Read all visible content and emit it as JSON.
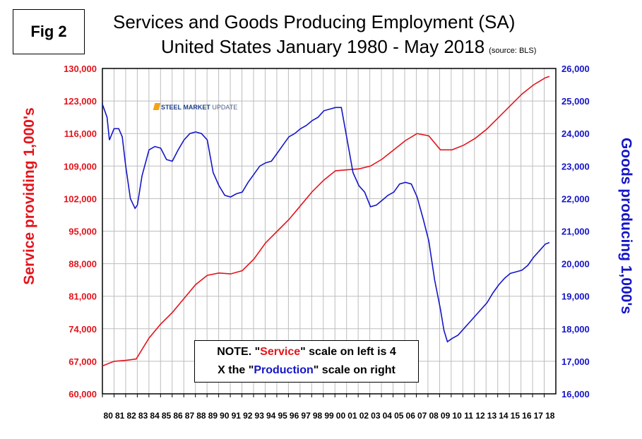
{
  "fig_label": "Fig 2",
  "title_line1": "Services and Goods Producing Employment (SA)",
  "title_line2": "United States January 1980 - May 2018",
  "source_note": "(source: BLS)",
  "logo_text_bold": "STEEL MARKET",
  "logo_text_thin": "UPDATE",
  "note": {
    "line1_pre": "NOTE. \"",
    "service_word": "Service",
    "line1_post": "\" scale on left  is 4",
    "line2_pre": "X the \"",
    "production_word": "Production",
    "line2_post": "\" scale on right"
  },
  "colors": {
    "service": "#e3141b",
    "goods": "#1515c8",
    "grid": "#bdbdbd"
  },
  "chart_data": {
    "type": "line",
    "ylabel_left": "Service providing 1,000's",
    "ylabel_right": "Goods producing 1,000's",
    "ylim_left": [
      60000,
      130000
    ],
    "ylim_right": [
      16000,
      26000
    ],
    "yticks_left": [
      "60,000",
      "67,000",
      "74,000",
      "81,000",
      "88,000",
      "95,000",
      "102,000",
      "109,000",
      "116,000",
      "123,000",
      "130,000"
    ],
    "yticks_right": [
      "16,000",
      "17,000",
      "18,000",
      "19,000",
      "20,000",
      "21,000",
      "22,000",
      "23,000",
      "24,000",
      "25,000",
      "26,000"
    ],
    "x_tick_labels": [
      "80",
      "81",
      "82",
      "83",
      "84",
      "85",
      "86",
      "87",
      "88",
      "89",
      "90",
      "91",
      "92",
      "93",
      "94",
      "95",
      "96",
      "97",
      "98",
      "99",
      "00",
      "01",
      "02",
      "03",
      "04",
      "05",
      "06",
      "07",
      "08",
      "09",
      "10",
      "11",
      "12",
      "13",
      "14",
      "15",
      "16",
      "17",
      "18"
    ],
    "grid": true,
    "series": [
      {
        "name": "Service",
        "axis": "left",
        "x": [
          1980.0,
          1981.0,
          1982.0,
          1982.9,
          1984.0,
          1985.0,
          1986.0,
          1987.0,
          1988.0,
          1989.0,
          1990.0,
          1991.0,
          1992.0,
          1993.0,
          1994.0,
          1995.0,
          1996.0,
          1997.0,
          1998.0,
          1999.0,
          2000.0,
          2001.0,
          2002.0,
          2003.0,
          2004.0,
          2005.0,
          2006.0,
          2007.0,
          2008.0,
          2009.0,
          2010.0,
          2011.0,
          2012.0,
          2013.0,
          2014.0,
          2015.0,
          2016.0,
          2017.0,
          2018.0,
          2018.35
        ],
        "values": [
          66000,
          67000,
          67200,
          67500,
          72000,
          75000,
          77500,
          80500,
          83500,
          85500,
          86000,
          85800,
          86500,
          89000,
          92500,
          95000,
          97500,
          100500,
          103500,
          106000,
          108000,
          108200,
          108400,
          109000,
          110500,
          112500,
          114500,
          116000,
          115500,
          112500,
          112500,
          113500,
          115000,
          117000,
          119500,
          122000,
          124500,
          126500,
          128000,
          128300
        ]
      },
      {
        "name": "Goods",
        "axis": "right",
        "x": [
          1980.0,
          1980.4,
          1980.6,
          1981.0,
          1981.4,
          1981.7,
          1982.0,
          1982.4,
          1982.8,
          1983.0,
          1983.4,
          1984.0,
          1984.5,
          1985.0,
          1985.5,
          1986.0,
          1986.5,
          1987.0,
          1987.5,
          1988.0,
          1988.5,
          1989.0,
          1989.5,
          1990.0,
          1990.5,
          1991.0,
          1991.5,
          1992.0,
          1992.5,
          1993.0,
          1993.5,
          1994.0,
          1994.5,
          1995.0,
          1995.5,
          1996.0,
          1996.5,
          1997.0,
          1997.5,
          1998.0,
          1998.5,
          1999.0,
          1999.5,
          2000.0,
          2000.5,
          2001.0,
          2001.5,
          2002.0,
          2002.5,
          2003.0,
          2003.5,
          2004.0,
          2004.5,
          2005.0,
          2005.5,
          2006.0,
          2006.5,
          2007.0,
          2007.5,
          2008.0,
          2008.5,
          2009.0,
          2009.3,
          2009.6,
          2010.0,
          2010.5,
          2011.0,
          2011.5,
          2012.0,
          2012.5,
          2013.0,
          2013.5,
          2014.0,
          2014.5,
          2015.0,
          2015.5,
          2016.0,
          2016.5,
          2017.0,
          2017.5,
          2018.0,
          2018.35
        ],
        "values": [
          24900,
          24500,
          23800,
          24150,
          24150,
          23900,
          23000,
          22000,
          21700,
          21800,
          22700,
          23500,
          23600,
          23550,
          23200,
          23150,
          23500,
          23800,
          24000,
          24050,
          24000,
          23800,
          22800,
          22400,
          22100,
          22050,
          22150,
          22200,
          22500,
          22750,
          23000,
          23100,
          23150,
          23400,
          23650,
          23900,
          24000,
          24150,
          24250,
          24400,
          24500,
          24700,
          24750,
          24800,
          24800,
          23800,
          22800,
          22400,
          22200,
          21750,
          21800,
          21950,
          22100,
          22200,
          22450,
          22500,
          22450,
          22050,
          21400,
          20700,
          19500,
          18600,
          17950,
          17600,
          17700,
          17800,
          18000,
          18200,
          18400,
          18600,
          18800,
          19100,
          19350,
          19550,
          19700,
          19750,
          19800,
          19950,
          20200,
          20400,
          20600,
          20650
        ]
      }
    ]
  }
}
